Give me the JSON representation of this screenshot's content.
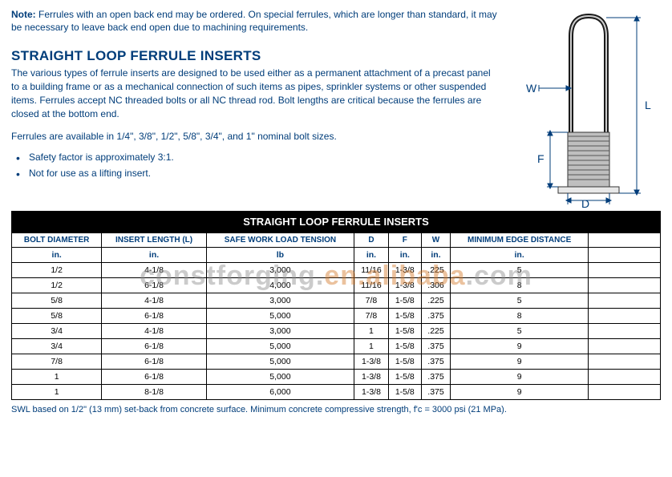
{
  "note": {
    "label": "Note:",
    "text": "Ferrules with an open back end may be ordered. On special ferrules, which are longer than standard, it may be necessary to leave back end open due to machining requirements."
  },
  "heading": "STRAIGHT LOOP FERRULE INSERTS",
  "description": "The various types of ferrule inserts are designed to be used either as a permanent attachment of a precast panel to a building frame or as a mechanical connection of such items as pipes, sprinkler systems or other suspended items. Ferrules accept NC threaded bolts or all NC thread rod. Bolt lengths are critical because the ferrules are closed at the bottom end.",
  "availability": "Ferrules are available in 1/4\", 3/8\", 1/2\", 5/8\", 3/4\", and 1\" nominal bolt sizes.",
  "bullets": [
    "Safety factor is approximately 3:1.",
    "Not for use as a lifting insert."
  ],
  "diagram": {
    "labels": {
      "W": "W",
      "L": "L",
      "F": "F",
      "D": "D"
    }
  },
  "table": {
    "title": "STRAIGHT LOOP FERRULE INSERTS",
    "headers": [
      "BOLT DIAMETER",
      "INSERT LENGTH (L)",
      "SAFE WORK LOAD TENSION",
      "D",
      "F",
      "W",
      "MINIMUM EDGE DISTANCE",
      ""
    ],
    "units": [
      "in.",
      "in.",
      "lb",
      "in.",
      "in.",
      "in.",
      "in.",
      ""
    ],
    "rows": [
      [
        "1/2",
        "4-1/8",
        "3,000",
        "11/16",
        "1-3/8",
        ".225",
        "5",
        ""
      ],
      [
        "1/2",
        "6-1/8",
        "4,000",
        "11/16",
        "1-3/8",
        ".306",
        "8",
        ""
      ],
      [
        "5/8",
        "4-1/8",
        "3,000",
        "7/8",
        "1-5/8",
        ".225",
        "5",
        ""
      ],
      [
        "5/8",
        "6-1/8",
        "5,000",
        "7/8",
        "1-5/8",
        ".375",
        "8",
        ""
      ],
      [
        "3/4",
        "4-1/8",
        "3,000",
        "1",
        "1-5/8",
        ".225",
        "5",
        ""
      ],
      [
        "3/4",
        "6-1/8",
        "5,000",
        "1",
        "1-5/8",
        ".375",
        "9",
        ""
      ],
      [
        "7/8",
        "6-1/8",
        "5,000",
        "1-3/8",
        "1-5/8",
        ".375",
        "9",
        ""
      ],
      [
        "1",
        "6-1/8",
        "5,000",
        "1-3/8",
        "1-5/8",
        ".375",
        "9",
        ""
      ],
      [
        "1",
        "8-1/8",
        "6,000",
        "1-3/8",
        "1-5/8",
        ".375",
        "9",
        ""
      ]
    ]
  },
  "footnote": "SWL based on 1/2\" (13 mm) set-back from concrete surface. Minimum concrete compressive strength, f'c = 3000 psi (21 MPa).",
  "watermark": {
    "a": "constforging.",
    "b": "en.alibaba",
    "c": ".com"
  }
}
